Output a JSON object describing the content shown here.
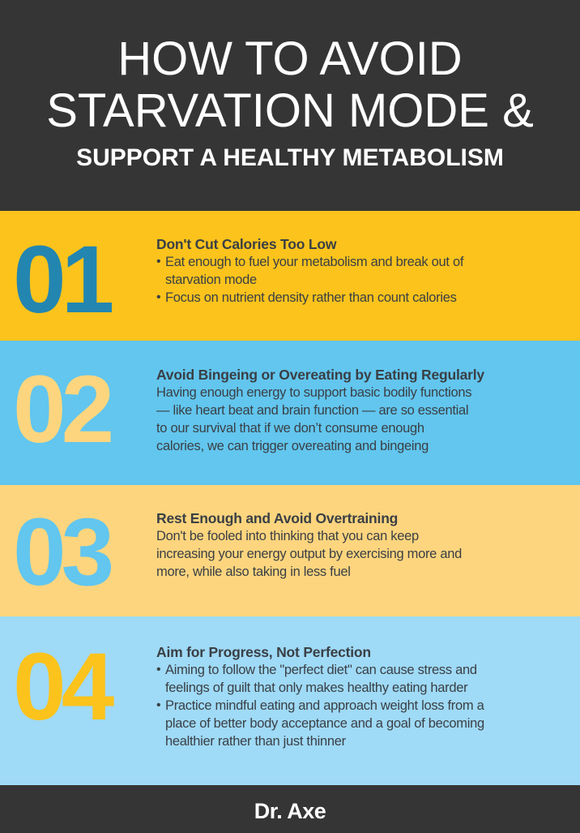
{
  "header": {
    "line1": "HOW TO AVOID",
    "line2": "STARVATION MODE &",
    "line3": "SUPPORT A HEALTHY METABOLISM"
  },
  "colors": {
    "dark": "#353535",
    "yellow": "#fbc31c",
    "blue": "#62c6ee",
    "light_yellow": "#fdd57e",
    "light_blue": "#9fdaf6",
    "dark_blue": "#2386b0"
  },
  "sections": [
    {
      "number": "01",
      "title": "Don't Cut Calories Too Low",
      "bullets": [
        [
          "Eat enough to fuel your metabolism and break out of",
          "starvation mode"
        ],
        [
          "Focus on nutrient density rather than count calories"
        ]
      ]
    },
    {
      "number": "02",
      "title": "Avoid Bingeing or Overeating by Eating Regularly",
      "body": [
        "Having enough energy to support basic bodily functions",
        "— like heart beat and brain function — are so essential",
        "to our survival that if we don’t consume enough",
        "calories, we can trigger overeating and bingeing"
      ]
    },
    {
      "number": "03",
      "title": "Rest Enough and Avoid Overtraining",
      "body": [
        "Don't be fooled into thinking that you can keep",
        "increasing your energy output by exercising more and",
        "more, while also taking in less fuel"
      ]
    },
    {
      "number": "04",
      "title": "Aim for Progress, Not Perfection",
      "bullets": [
        [
          "Aiming to follow the \"perfect diet\" can cause stress and",
          "feelings of guilt that only makes healthy eating harder"
        ],
        [
          "Practice mindful eating and approach weight loss from a",
          "place of better body acceptance and a goal of becoming",
          "healthier rather than just thinner"
        ]
      ]
    }
  ],
  "footer": {
    "logo": "Dr. Axe"
  }
}
